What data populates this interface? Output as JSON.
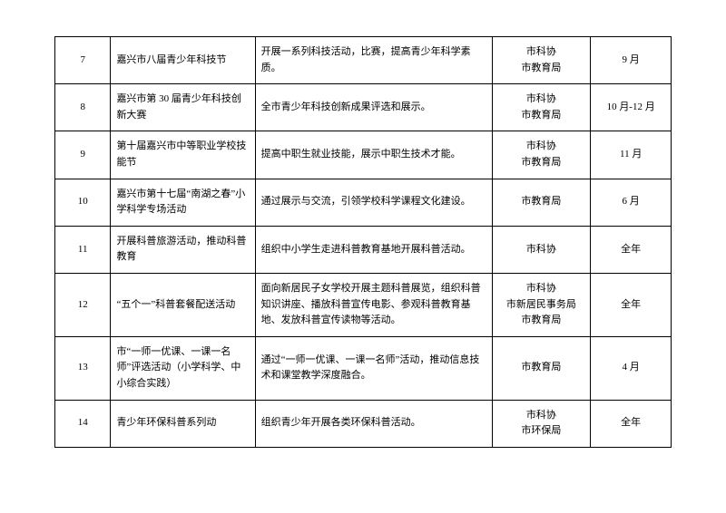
{
  "table": {
    "columns": {
      "num_width": 48,
      "title_width": 145,
      "desc_width": 246,
      "dept_width": 95,
      "time_width": 75
    },
    "rows": [
      {
        "num": "7",
        "title": "嘉兴市八届青少年科技节",
        "desc": "开展一系列科技活动，比赛，提高青少年科学素质。",
        "dept": [
          "市科协",
          "市教育局"
        ],
        "time": "9 月"
      },
      {
        "num": "8",
        "title": "嘉兴市第 30 届青少年科技创新大赛",
        "desc": "全市青少年科技创新成果评选和展示。",
        "dept": [
          "市科协",
          "市教育局"
        ],
        "time": "10 月-12 月"
      },
      {
        "num": "9",
        "title": "第十届嘉兴市中等职业学校技能节",
        "desc": "提高中职生就业技能，展示中职生技术才能。",
        "dept": [
          "市科协",
          "市教育局"
        ],
        "time": "11 月"
      },
      {
        "num": "10",
        "title": "嘉兴市第十七届“南湖之春”小学科学专场活动",
        "desc": "通过展示与交流，引领学校科学课程文化建设。",
        "dept": [
          "市教育局"
        ],
        "time": "6 月"
      },
      {
        "num": "11",
        "title": "开展科普旅游活动，推动科普教育",
        "desc": "组织中小学生走进科普教育基地开展科普活动。",
        "dept": [
          "市科协"
        ],
        "time": "全年"
      },
      {
        "num": "12",
        "title": "“五个一”科普套餐配送活动",
        "desc": "面向新居民子女学校开展主题科普展览，组织科普知识讲座、播放科普宣传电影、参观科普教育基地、发放科普宣传读物等活动。",
        "dept": [
          "市科协",
          "市新居民事务局",
          "市教育局"
        ],
        "time": "全年"
      },
      {
        "num": "13",
        "title": "市“一师一优课、一课一名师”评选活动（小学科学、中小综合实践）",
        "desc": "通过“一师一优课、一课一名师”活动，推动信息技术和课堂教学深度融合。",
        "dept": [
          "市教育局"
        ],
        "time": "4 月"
      },
      {
        "num": "14",
        "title": "青少年环保科普系列动",
        "desc": "组织青少年开展各类环保科普活动。",
        "dept": [
          "市科协",
          "市环保局"
        ],
        "time": "全年"
      }
    ]
  },
  "styling": {
    "border_color": "#000000",
    "text_color": "#000000",
    "background_color": "#ffffff",
    "font_family": "SimSun",
    "font_size": 11,
    "line_height": 1.6
  }
}
